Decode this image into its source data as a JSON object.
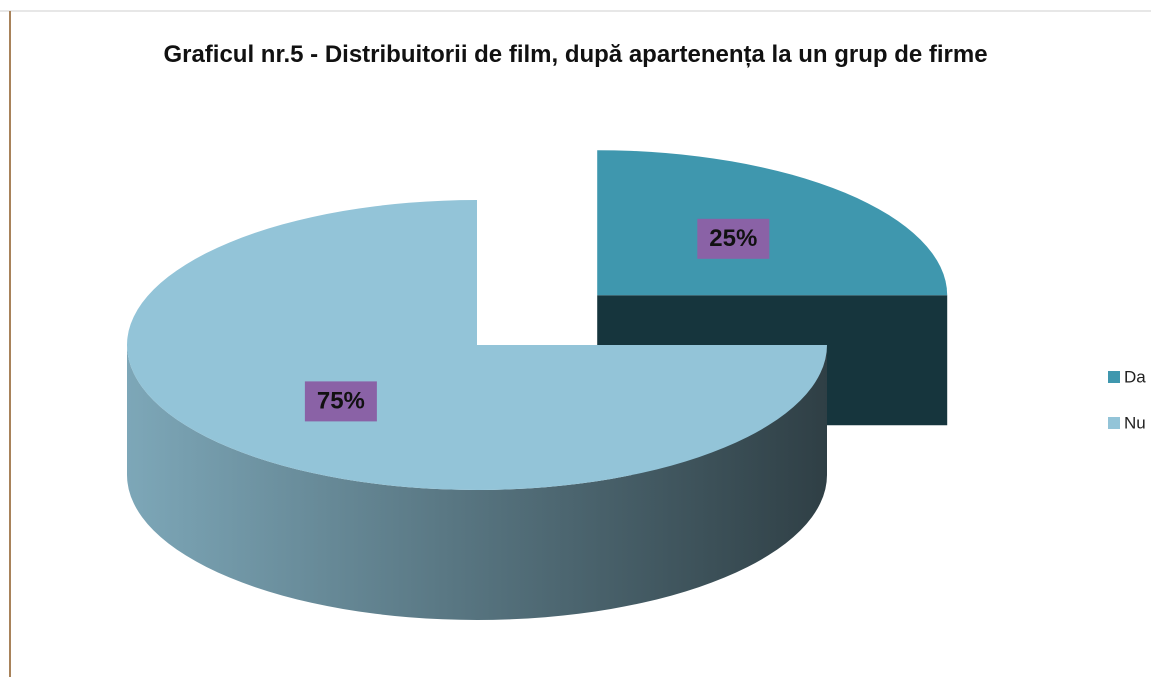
{
  "chart_data": {
    "type": "pie",
    "title": "Graficul nr.5 - Distribuitorii de film, după apartenența la un grup de firme",
    "categories": [
      "Da",
      "Nu"
    ],
    "values": [
      25,
      75
    ],
    "value_labels": [
      "25%",
      "75%"
    ],
    "colors": [
      "#3f97ae",
      "#93c4d8"
    ],
    "legend": "right"
  }
}
